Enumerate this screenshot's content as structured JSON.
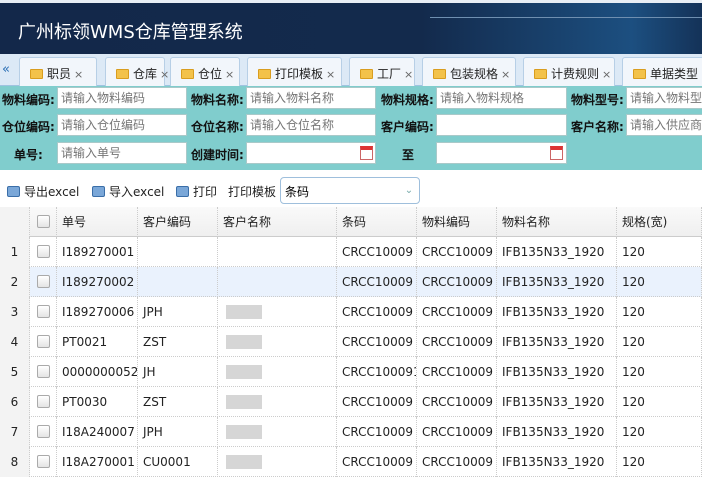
{
  "app": {
    "title": "广州标领WMS仓库管理系统"
  },
  "tabs": [
    {
      "label": "职员"
    },
    {
      "label": "仓库"
    },
    {
      "label": "仓位"
    },
    {
      "label": "打印模板"
    },
    {
      "label": "工厂"
    },
    {
      "label": "包装规格"
    },
    {
      "label": "计费规则"
    },
    {
      "label": "单据类型"
    }
  ],
  "filters": {
    "material_code": {
      "label": "物料编码:",
      "placeholder": "请输入物料编码"
    },
    "material_name": {
      "label": "物料名称:",
      "placeholder": "请输入物料名称"
    },
    "material_spec": {
      "label": "物料规格:",
      "placeholder": "请输入物料规格"
    },
    "material_model": {
      "label": "物料型号:",
      "placeholder": "请输入物料型号"
    },
    "location_code": {
      "label": "仓位编码:",
      "placeholder": "请输入仓位编码"
    },
    "location_name": {
      "label": "仓位名称:",
      "placeholder": "请输入仓位名称"
    },
    "customer_code": {
      "label": "客户编码:",
      "placeholder": ""
    },
    "customer_name": {
      "label": "客户名称:",
      "placeholder": "请输入供应商"
    },
    "order_no": {
      "label": "单号:",
      "placeholder": "请输入单号"
    },
    "created_time": {
      "label": "创建时间:",
      "value": ""
    },
    "to": {
      "label": "至",
      "value": ""
    }
  },
  "toolbar": {
    "export": "导出excel",
    "import": "导入excel",
    "print": "打印",
    "template_label": "打印模板",
    "template_value": "条码"
  },
  "table": {
    "columns": [
      "单号",
      "客户编码",
      "客户名称",
      "条码",
      "物料编码",
      "物料名称",
      "规格(宽)"
    ],
    "rows": [
      {
        "n": "1",
        "no": "I189270001",
        "cust": "",
        "name": "",
        "barcode": "CRCC10009",
        "mcode": "CRCC10009",
        "mname": "IFB135N33_1920",
        "spec": "120"
      },
      {
        "n": "2",
        "no": "I189270002",
        "cust": "",
        "name": "",
        "barcode": "CRCC10009",
        "mcode": "CRCC10009",
        "mname": "IFB135N33_1920",
        "spec": "120",
        "selected": true
      },
      {
        "n": "3",
        "no": "I189270006",
        "cust": "JPH",
        "name": "",
        "barcode": "CRCC10009",
        "mcode": "CRCC10009",
        "mname": "IFB135N33_1920",
        "spec": "120"
      },
      {
        "n": "4",
        "no": "PT0021",
        "cust": "ZST",
        "name": "",
        "barcode": "CRCC10009",
        "mcode": "CRCC10009",
        "mname": "IFB135N33_1920",
        "spec": "120"
      },
      {
        "n": "5",
        "no": "0000000052",
        "cust": "JH",
        "name": "",
        "barcode": "CRCC100091",
        "mcode": "CRCC10009",
        "mname": "IFB135N33_1920",
        "spec": "120"
      },
      {
        "n": "6",
        "no": "PT0030",
        "cust": "ZST",
        "name": "",
        "barcode": "CRCC10009",
        "mcode": "CRCC10009",
        "mname": "IFB135N33_1920",
        "spec": "120"
      },
      {
        "n": "7",
        "no": "I18A240007",
        "cust": "JPH",
        "name": "",
        "barcode": "CRCC10009",
        "mcode": "CRCC10009",
        "mname": "IFB135N33_1920",
        "spec": "120"
      },
      {
        "n": "8",
        "no": "I18A270001",
        "cust": "CU0001",
        "name": "",
        "barcode": "CRCC10009",
        "mcode": "CRCC10009",
        "mname": "IFB135N33_1920",
        "spec": "120"
      }
    ]
  }
}
